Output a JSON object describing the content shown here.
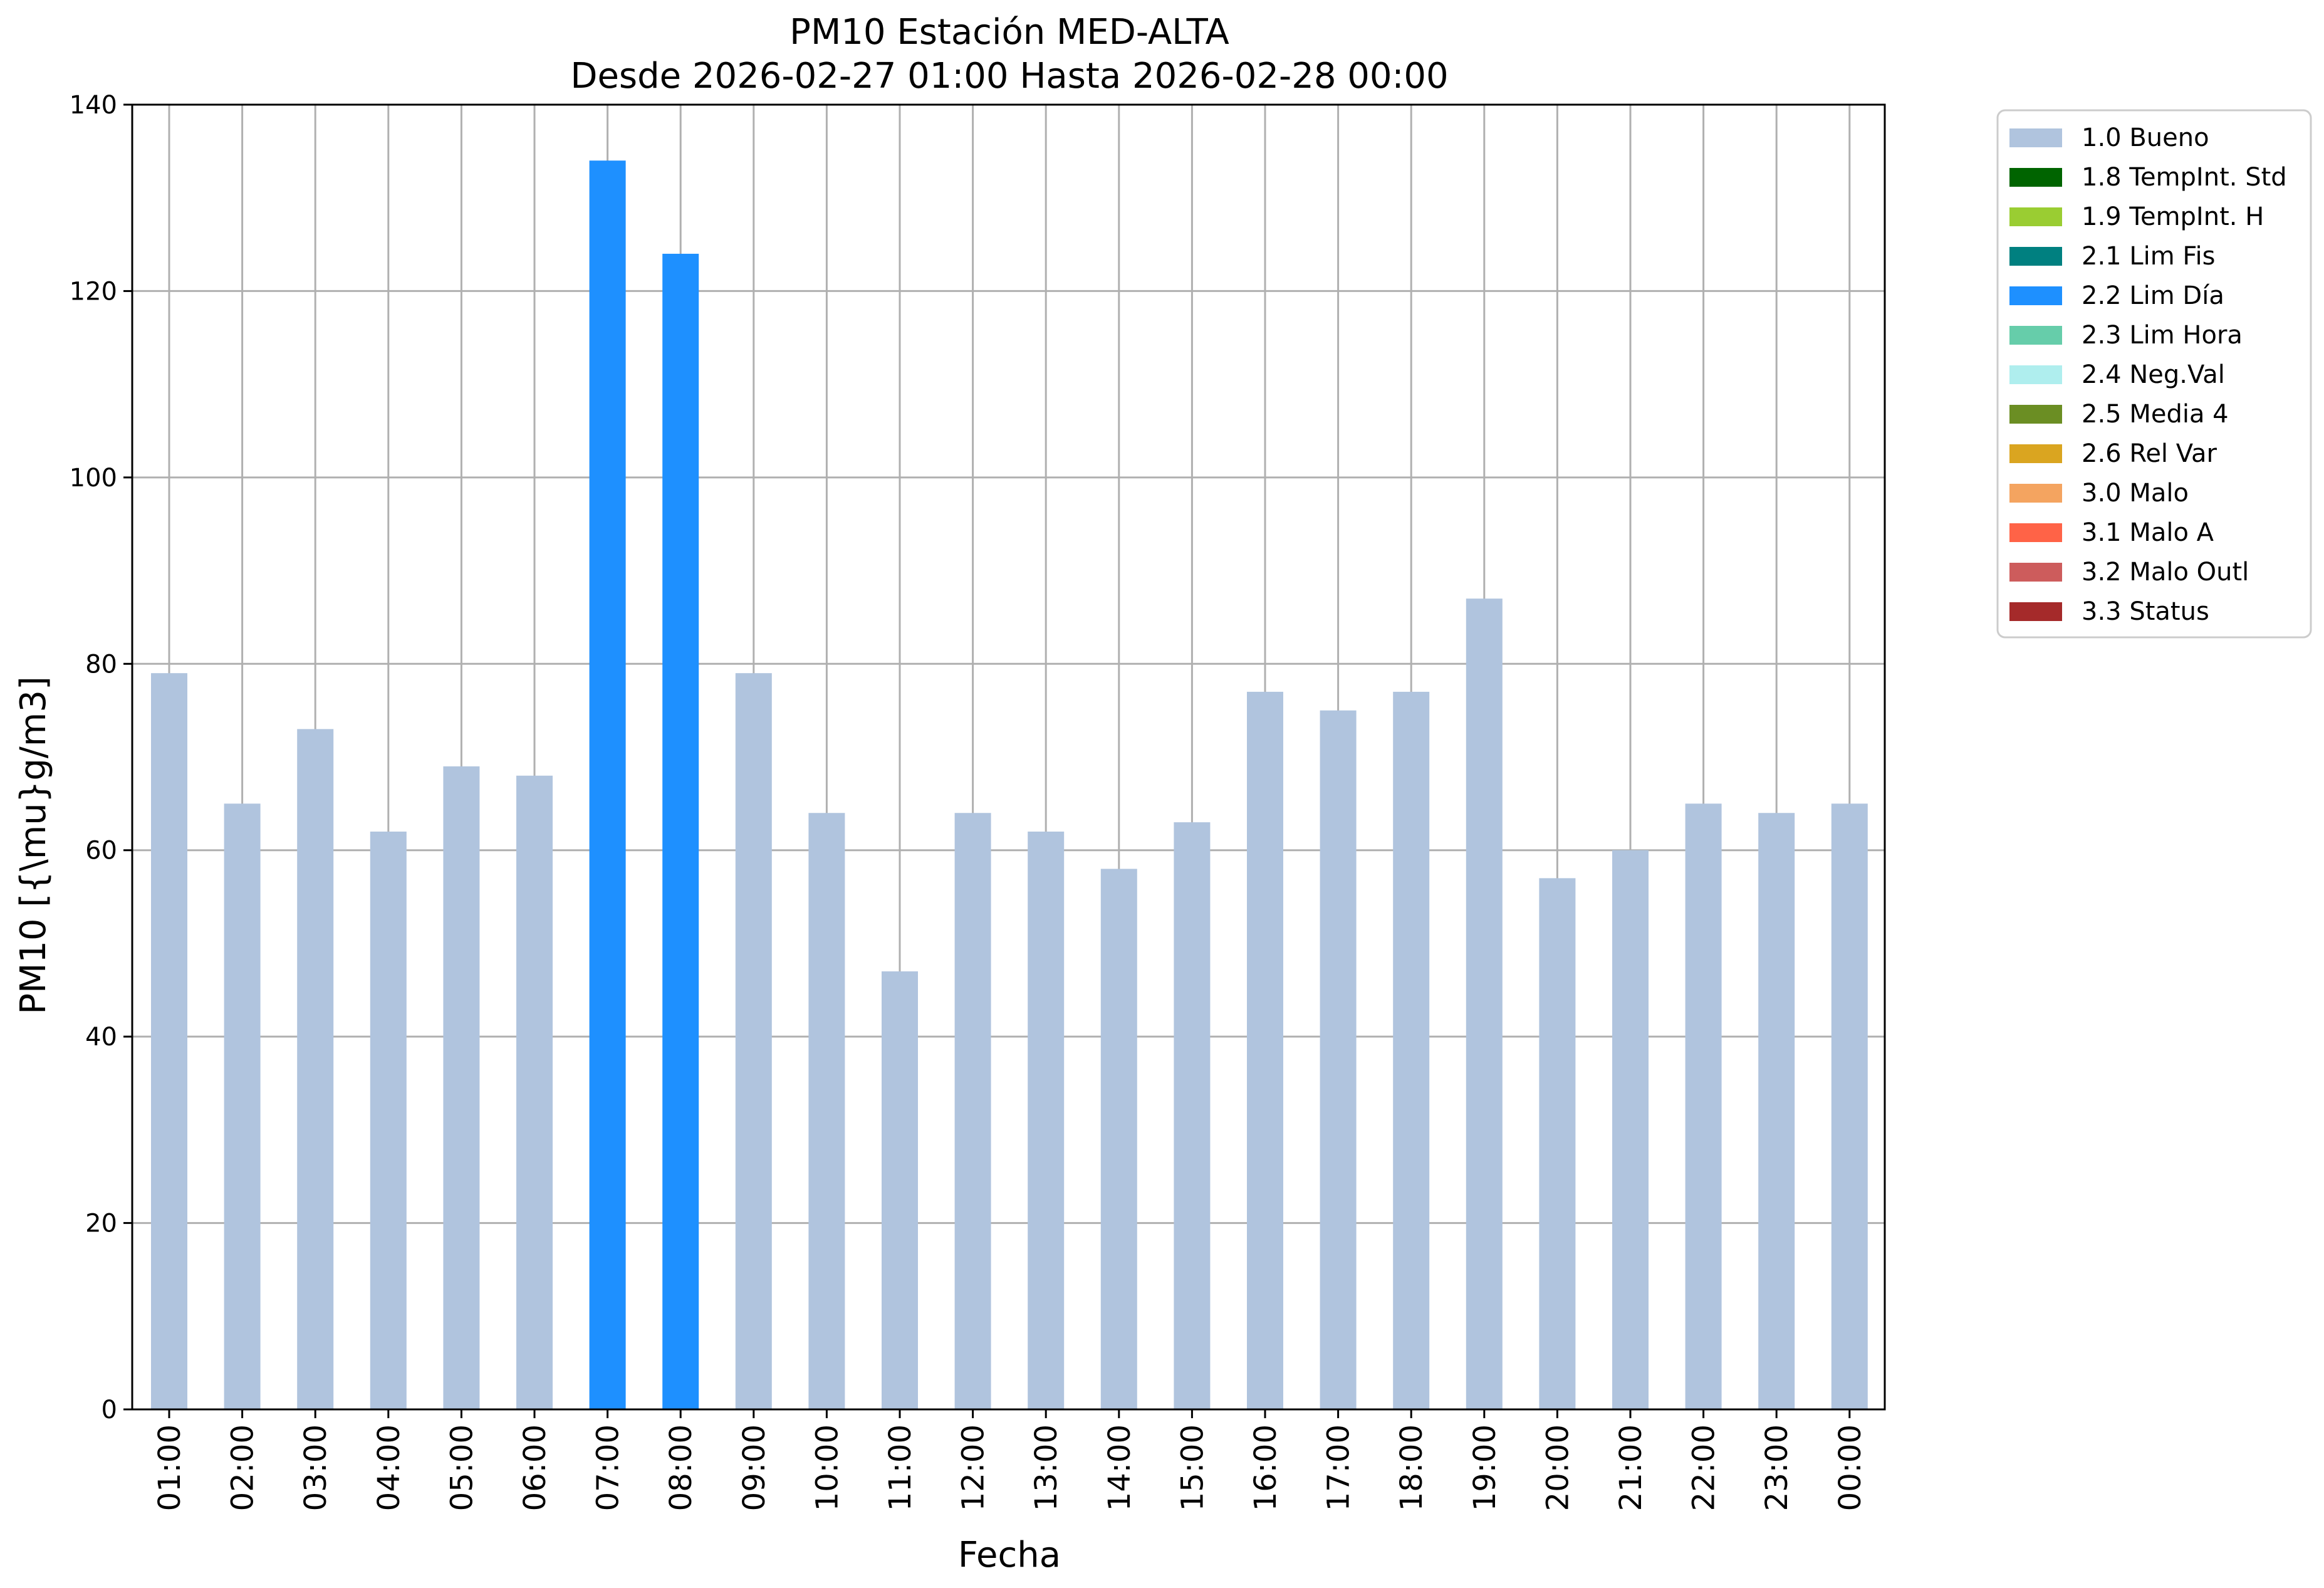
{
  "chart_data": {
    "type": "bar",
    "title": "PM10 Estación MED-ALTA",
    "subtitle": "Desde 2026-02-27 01:00 Hasta 2026-02-28 00:00",
    "xlabel": "Fecha",
    "ylabel": "PM10 [{\\mu}g/m3]",
    "ylim": [
      0,
      140
    ],
    "yticks": [
      0,
      20,
      40,
      60,
      80,
      100,
      120,
      140
    ],
    "grid": true,
    "legend_placement": "outside-top-right",
    "categories": [
      "01:00",
      "02:00",
      "03:00",
      "04:00",
      "05:00",
      "06:00",
      "07:00",
      "08:00",
      "09:00",
      "10:00",
      "11:00",
      "12:00",
      "13:00",
      "14:00",
      "15:00",
      "16:00",
      "17:00",
      "18:00",
      "19:00",
      "20:00",
      "21:00",
      "22:00",
      "23:00",
      "00:00"
    ],
    "values": [
      79,
      65,
      73,
      62,
      69,
      68,
      134,
      124,
      79,
      64,
      47,
      64,
      62,
      58,
      63,
      77,
      75,
      77,
      87,
      57,
      60,
      65,
      64,
      65
    ],
    "flags": [
      "1.0 Bueno",
      "1.0 Bueno",
      "1.0 Bueno",
      "1.0 Bueno",
      "1.0 Bueno",
      "1.0 Bueno",
      "2.2 Lim Día",
      "2.2 Lim Día",
      "1.0 Bueno",
      "1.0 Bueno",
      "1.0 Bueno",
      "1.0 Bueno",
      "1.0 Bueno",
      "1.0 Bueno",
      "1.0 Bueno",
      "1.0 Bueno",
      "1.0 Bueno",
      "1.0 Bueno",
      "1.0 Bueno",
      "1.0 Bueno",
      "1.0 Bueno",
      "1.0 Bueno",
      "1.0 Bueno",
      "1.0 Bueno"
    ],
    "legend": [
      {
        "label": "1.0 Bueno",
        "color": "#b0c4de"
      },
      {
        "label": "1.8 TempInt. Std",
        "color": "#006400"
      },
      {
        "label": "1.9 TempInt. H",
        "color": "#9acd32"
      },
      {
        "label": "2.1 Lim Fis",
        "color": "#008080"
      },
      {
        "label": "2.2 Lim Día",
        "color": "#1e90ff"
      },
      {
        "label": "2.3 Lim Hora",
        "color": "#66cdaa"
      },
      {
        "label": "2.4 Neg.Val",
        "color": "#afeeee"
      },
      {
        "label": "2.5 Media 4",
        "color": "#6b8e23"
      },
      {
        "label": "2.6 Rel Var",
        "color": "#daa520"
      },
      {
        "label": "3.0 Malo",
        "color": "#f4a460"
      },
      {
        "label": "3.1 Malo A",
        "color": "#ff6347"
      },
      {
        "label": "3.2 Malo Outl",
        "color": "#cd5c5c"
      },
      {
        "label": "3.3 Status",
        "color": "#a52a2a"
      }
    ]
  }
}
